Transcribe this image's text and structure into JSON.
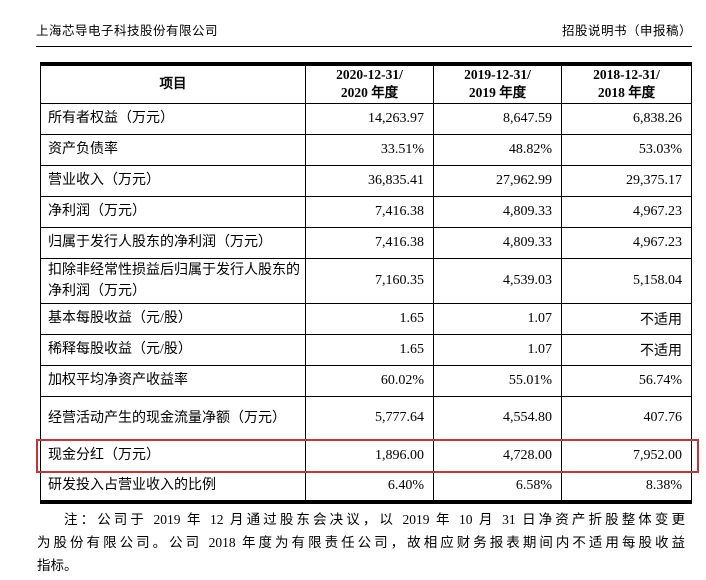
{
  "page_header": {
    "company_name": "上海芯导电子科技股份有限公司",
    "doc_type": "招股说明书（申报稿）"
  },
  "table": {
    "columns": {
      "item": "项目",
      "periods": [
        {
          "line1": "2020-12-31/",
          "line2": "2020 年度"
        },
        {
          "line1": "2019-12-31/",
          "line2": "2019 年度"
        },
        {
          "line1": "2018-12-31/",
          "line2": "2018 年度"
        }
      ]
    },
    "rows": [
      {
        "label": "所有者权益（万元）",
        "values": [
          "14,263.97",
          "8,647.59",
          "6,838.26"
        ],
        "highlighted": false
      },
      {
        "label": "资产负债率",
        "values": [
          "33.51%",
          "48.82%",
          "53.03%"
        ],
        "highlighted": false
      },
      {
        "label": "营业收入（万元）",
        "values": [
          "36,835.41",
          "27,962.99",
          "29,375.17"
        ],
        "highlighted": false
      },
      {
        "label": "净利润（万元）",
        "values": [
          "7,416.38",
          "4,809.33",
          "4,967.23"
        ],
        "highlighted": false
      },
      {
        "label": "归属于发行人股东的净利润（万元）",
        "values": [
          "7,416.38",
          "4,809.33",
          "4,967.23"
        ],
        "highlighted": false
      },
      {
        "label": "扣除非经常性损益后归属于发行人股东的净利润（万元）",
        "values": [
          "7,160.35",
          "4,539.03",
          "5,158.04"
        ],
        "highlighted": false
      },
      {
        "label": "基本每股收益（元/股）",
        "values": [
          "1.65",
          "1.07",
          "不适用"
        ],
        "highlighted": false
      },
      {
        "label": "稀释每股收益（元/股）",
        "values": [
          "1.65",
          "1.07",
          "不适用"
        ],
        "highlighted": false
      },
      {
        "label": "加权平均净资产收益率",
        "values": [
          "60.02%",
          "55.01%",
          "56.74%"
        ],
        "highlighted": false
      },
      {
        "label": "经营活动产生的现金流量净额（万元）",
        "values": [
          "5,777.64",
          "4,554.80",
          "407.76"
        ],
        "highlighted": false
      },
      {
        "label": "现金分红（万元）",
        "values": [
          "1,896.00",
          "4,728.00",
          "7,952.00"
        ],
        "highlighted": true
      },
      {
        "label": "研发投入占营业收入的比例",
        "values": [
          "6.40%",
          "6.58%",
          "8.38%"
        ],
        "highlighted": false
      }
    ]
  },
  "note_lines": [
    "注：公司于 2019 年 12 月通过股东会决议，以 2019 年 10 月 31 日净资产折股整体变更",
    "为股份有限公司。公司 2018 年度为有限责任公司，故相应财务报表期间内不适用每股收益",
    "指标。"
  ],
  "colors": {
    "text": "#000000",
    "background": "#ffffff",
    "table_border": "#000000",
    "highlight_border": "#cc3333"
  }
}
